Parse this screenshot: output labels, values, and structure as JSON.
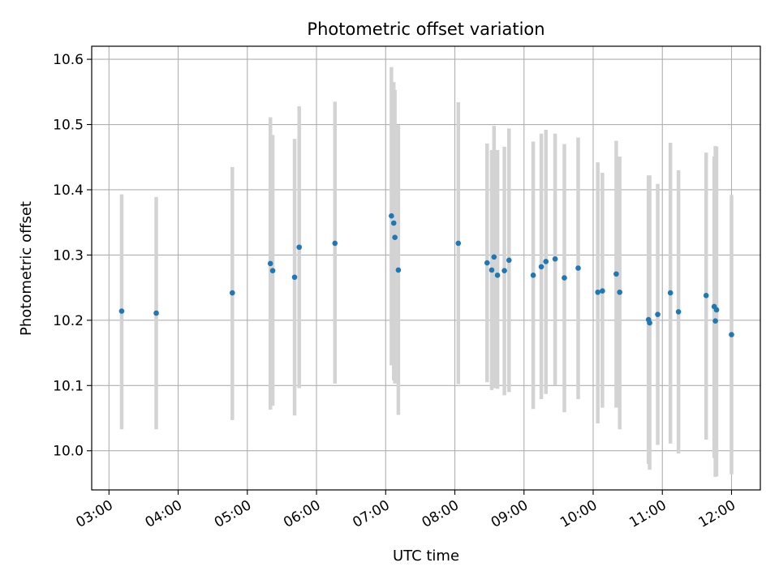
{
  "chart_data": {
    "type": "scatter",
    "title": "Photometric offset variation",
    "xlabel": "UTC time",
    "ylabel": "Photometric offset",
    "x_unit": "hours UTC",
    "xlim": [
      "02:45",
      "12:25"
    ],
    "ylim": [
      9.94,
      10.62
    ],
    "x_ticks": [
      "03:00",
      "04:00",
      "05:00",
      "06:00",
      "07:00",
      "08:00",
      "09:00",
      "10:00",
      "11:00",
      "12:00"
    ],
    "y_ticks": [
      "10.0",
      "10.1",
      "10.2",
      "10.3",
      "10.4",
      "10.5",
      "10.6"
    ],
    "grid": true,
    "point_color": "#1f77b4",
    "errorbar_color": "#d3d3d3",
    "points": [
      {
        "x": "03:11",
        "y": 10.214,
        "ylo": 10.033,
        "yhi": 10.393
      },
      {
        "x": "03:41",
        "y": 10.211,
        "ylo": 10.033,
        "yhi": 10.389
      },
      {
        "x": "04:47",
        "y": 10.242,
        "ylo": 10.047,
        "yhi": 10.435
      },
      {
        "x": "05:20",
        "y": 10.287,
        "ylo": 10.063,
        "yhi": 10.511
      },
      {
        "x": "05:22",
        "y": 10.276,
        "ylo": 10.069,
        "yhi": 10.484
      },
      {
        "x": "05:41",
        "y": 10.266,
        "ylo": 10.054,
        "yhi": 10.478
      },
      {
        "x": "05:45",
        "y": 10.312,
        "ylo": 10.096,
        "yhi": 10.528
      },
      {
        "x": "06:16",
        "y": 10.318,
        "ylo": 10.103,
        "yhi": 10.535
      },
      {
        "x": "07:05",
        "y": 10.36,
        "ylo": 10.131,
        "yhi": 10.588
      },
      {
        "x": "07:07",
        "y": 10.349,
        "ylo": 10.108,
        "yhi": 10.565
      },
      {
        "x": "07:08",
        "y": 10.327,
        "ylo": 10.103,
        "yhi": 10.553
      },
      {
        "x": "07:11",
        "y": 10.277,
        "ylo": 10.055,
        "yhi": 10.499
      },
      {
        "x": "08:03",
        "y": 10.318,
        "ylo": 10.102,
        "yhi": 10.534
      },
      {
        "x": "08:28",
        "y": 10.288,
        "ylo": 10.105,
        "yhi": 10.471
      },
      {
        "x": "08:32",
        "y": 10.277,
        "ylo": 10.093,
        "yhi": 10.461
      },
      {
        "x": "08:34",
        "y": 10.297,
        "ylo": 10.096,
        "yhi": 10.498
      },
      {
        "x": "08:37",
        "y": 10.269,
        "ylo": 10.095,
        "yhi": 10.461
      },
      {
        "x": "08:43",
        "y": 10.276,
        "ylo": 10.085,
        "yhi": 10.466
      },
      {
        "x": "08:47",
        "y": 10.292,
        "ylo": 10.09,
        "yhi": 10.494
      },
      {
        "x": "09:08",
        "y": 10.269,
        "ylo": 10.064,
        "yhi": 10.474
      },
      {
        "x": "09:15",
        "y": 10.282,
        "ylo": 10.079,
        "yhi": 10.486
      },
      {
        "x": "09:19",
        "y": 10.29,
        "ylo": 10.087,
        "yhi": 10.492
      },
      {
        "x": "09:27",
        "y": 10.294,
        "ylo": 10.101,
        "yhi": 10.486
      },
      {
        "x": "09:35",
        "y": 10.265,
        "ylo": 10.059,
        "yhi": 10.47
      },
      {
        "x": "09:47",
        "y": 10.28,
        "ylo": 10.079,
        "yhi": 10.48
      },
      {
        "x": "10:04",
        "y": 10.243,
        "ylo": 10.042,
        "yhi": 10.442
      },
      {
        "x": "10:08",
        "y": 10.245,
        "ylo": 10.066,
        "yhi": 10.426
      },
      {
        "x": "10:20",
        "y": 10.271,
        "ylo": 10.066,
        "yhi": 10.475
      },
      {
        "x": "10:23",
        "y": 10.243,
        "ylo": 10.033,
        "yhi": 10.451
      },
      {
        "x": "10:48",
        "y": 10.201,
        "ylo": 9.98,
        "yhi": 10.422
      },
      {
        "x": "10:49",
        "y": 10.196,
        "ylo": 9.971,
        "yhi": 10.422
      },
      {
        "x": "10:56",
        "y": 10.209,
        "ylo": 10.009,
        "yhi": 10.409
      },
      {
        "x": "11:07",
        "y": 10.242,
        "ylo": 10.011,
        "yhi": 10.472
      },
      {
        "x": "11:14",
        "y": 10.213,
        "ylo": 9.996,
        "yhi": 10.43
      },
      {
        "x": "11:38",
        "y": 10.238,
        "ylo": 10.017,
        "yhi": 10.457
      },
      {
        "x": "11:45",
        "y": 10.221,
        "ylo": 9.989,
        "yhi": 10.451
      },
      {
        "x": "11:46",
        "y": 10.199,
        "ylo": 9.96,
        "yhi": 10.467
      },
      {
        "x": "11:47",
        "y": 10.216,
        "ylo": 9.961,
        "yhi": 10.466
      },
      {
        "x": "12:00",
        "y": 10.178,
        "ylo": 9.964,
        "yhi": 10.392
      }
    ]
  }
}
